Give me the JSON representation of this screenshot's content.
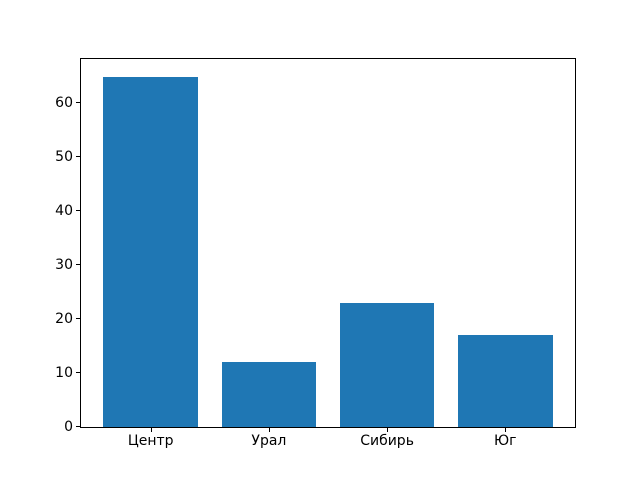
{
  "chart_data": {
    "type": "bar",
    "categories": [
      "Центр",
      "Урал",
      "Сибирь",
      "Юг"
    ],
    "values": [
      65,
      12,
      23,
      17
    ],
    "yticks": [
      0,
      10,
      20,
      30,
      40,
      50,
      60
    ],
    "ylim": [
      0,
      68.25
    ],
    "grid": false,
    "legend": false,
    "bar_color": "#1f77b4"
  },
  "colors": {
    "bar": "#1f77b4",
    "spine": "#000000",
    "text": "#000000",
    "background": "#ffffff"
  }
}
